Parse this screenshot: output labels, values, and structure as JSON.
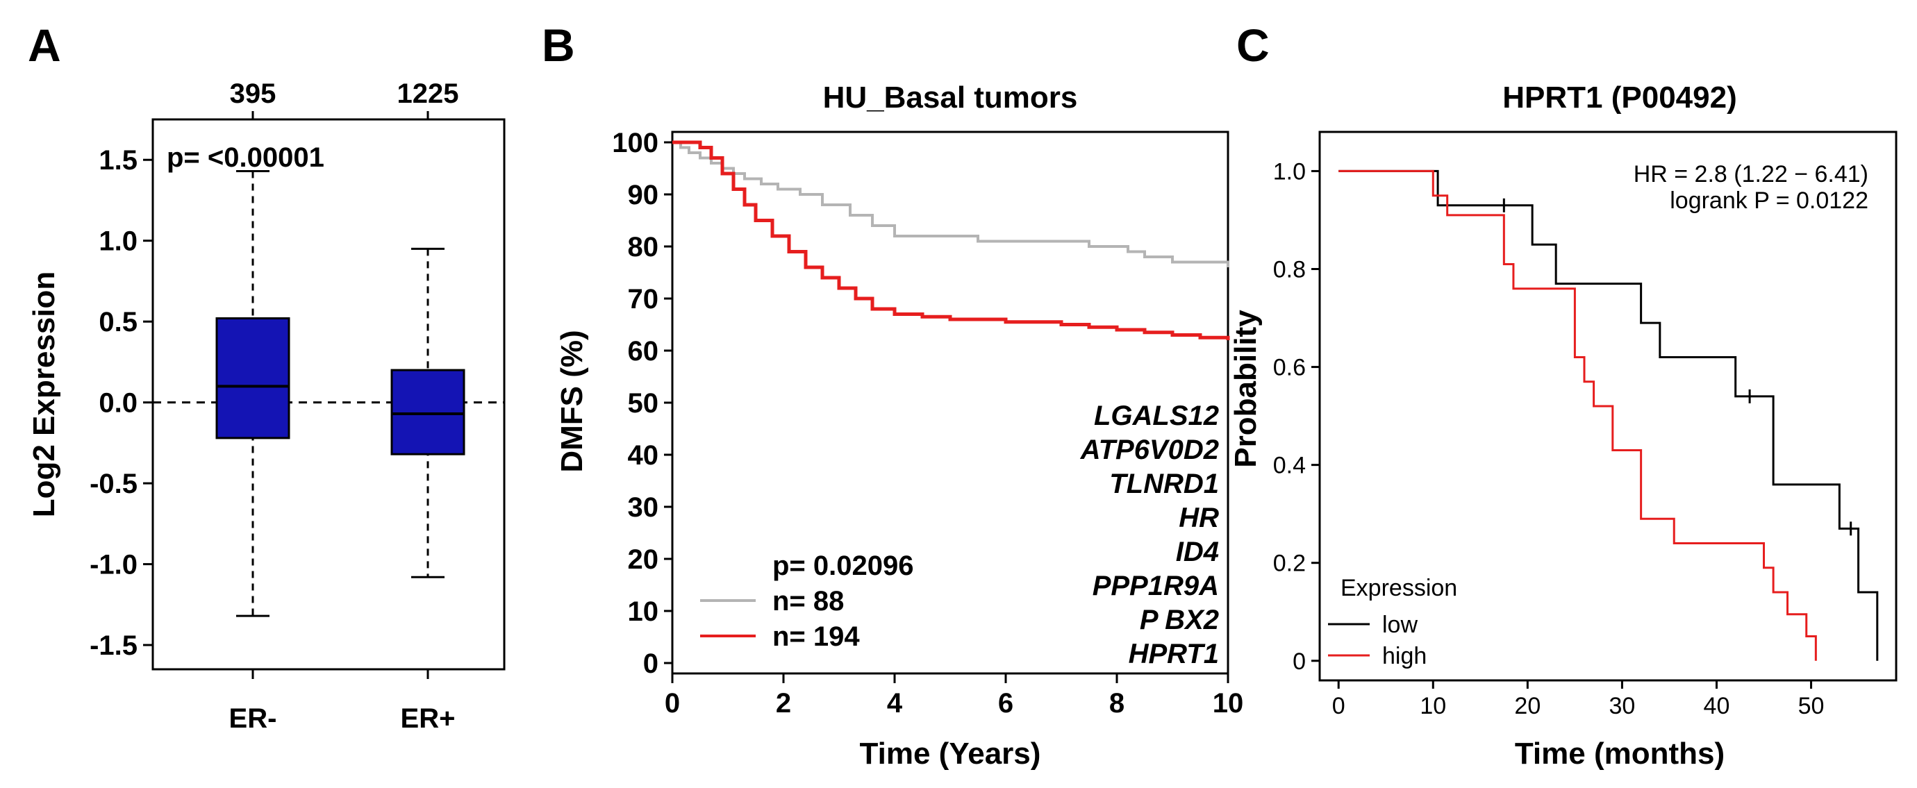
{
  "chart_data": [
    {
      "type": "box",
      "panel": "A",
      "title": "",
      "ylabel": "Log2 Expression",
      "xlabel": "",
      "ylim": [
        -1.65,
        1.75
      ],
      "yticks": [
        "1.5",
        "1.0",
        "0.5",
        "0.0",
        "-0.5",
        "-1.0",
        "-1.5"
      ],
      "ytick_values": [
        1.5,
        1.0,
        0.5,
        0.0,
        -0.5,
        -1.0,
        -1.5
      ],
      "reference_line": 0.0,
      "annotation": "p= <0.00001",
      "color": "#1414b4",
      "groups": [
        {
          "label": "ER-",
          "n": "395",
          "whisker_low": -1.32,
          "q1": -0.22,
          "median": 0.1,
          "q3": 0.52,
          "whisker_high": 1.43
        },
        {
          "label": "ER+",
          "n": "1225",
          "whisker_low": -1.08,
          "q1": -0.32,
          "median": -0.07,
          "q3": 0.2,
          "whisker_high": 0.95
        }
      ]
    },
    {
      "type": "line",
      "panel": "B",
      "title": "HU_Basal tumors",
      "xlabel": "Time (Years)",
      "ylabel": "DMFS (%)",
      "xlim": [
        0,
        10
      ],
      "ylim": [
        -2,
        102
      ],
      "xticks": [
        "0",
        "2",
        "4",
        "6",
        "8",
        "10"
      ],
      "xtick_values": [
        0,
        2,
        4,
        6,
        8,
        10
      ],
      "yticks": [
        "100",
        "90",
        "80",
        "70",
        "60",
        "50",
        "40",
        "30",
        "20",
        "10",
        "0"
      ],
      "ytick_values": [
        100,
        90,
        80,
        70,
        60,
        50,
        40,
        30,
        20,
        10,
        0
      ],
      "p_value": "p= 0.02096",
      "genes": [
        "LGALS12",
        "ATP6V0D2",
        "TLNRD1",
        "HR",
        "ID4",
        "PPP1R9A",
        "P BX2",
        "HPRT1"
      ],
      "series": [
        {
          "name": "n= 88",
          "color": "#b4b4b4",
          "x": [
            0,
            0.15,
            0.3,
            0.5,
            0.7,
            0.9,
            1.1,
            1.3,
            1.6,
            1.9,
            2.3,
            2.7,
            3.2,
            3.6,
            4.0,
            5.5,
            6.8,
            7.5,
            8.2,
            8.5,
            9.0,
            10.0
          ],
          "y": [
            100,
            99,
            98,
            97,
            96,
            95,
            94,
            93,
            92,
            91,
            90,
            88,
            86,
            84,
            82,
            81,
            81,
            80,
            79,
            78,
            77,
            76
          ]
        },
        {
          "name": "n= 194",
          "color": "#e61e1e",
          "x": [
            0,
            0.3,
            0.5,
            0.7,
            0.9,
            1.1,
            1.3,
            1.5,
            1.8,
            2.1,
            2.4,
            2.7,
            3.0,
            3.3,
            3.6,
            4.0,
            4.5,
            5.0,
            6.0,
            7.0,
            7.5,
            8.0,
            8.5,
            9.0,
            9.5,
            10.0
          ],
          "y": [
            100,
            100,
            99,
            97,
            94,
            91,
            88,
            85,
            82,
            79,
            76,
            74,
            72,
            70,
            68,
            67,
            66.5,
            66,
            65.5,
            65,
            64.5,
            64,
            63.5,
            63,
            62.5,
            62
          ]
        }
      ]
    },
    {
      "type": "line",
      "panel": "C",
      "title": "HPRT1 (P00492)",
      "xlabel": "Time (months)",
      "ylabel": "Probability",
      "xlim": [
        -2,
        59
      ],
      "ylim": [
        -0.04,
        1.08
      ],
      "xticks": [
        "0",
        "10",
        "20",
        "30",
        "40",
        "50"
      ],
      "xtick_values": [
        0,
        10,
        20,
        30,
        40,
        50
      ],
      "yticks": [
        "1.0",
        "0.8",
        "0.6",
        "0.4",
        "0.2",
        "0"
      ],
      "ytick_values": [
        1.0,
        0.8,
        0.6,
        0.4,
        0.2,
        0.0
      ],
      "hr_text": "HR = 2.8 (1.22 − 6.41)",
      "logrank_text": "logrank P = 0.0122",
      "legend_title": "Expression",
      "legend_position": "bottom-left",
      "series": [
        {
          "name": "low",
          "color": "#000000",
          "x": [
            0,
            10.5,
            10.5,
            20.5,
            20.5,
            23,
            23,
            29.5,
            29.5,
            32,
            32,
            34,
            34,
            42,
            42,
            46,
            46,
            53,
            53,
            55,
            55,
            57,
            57
          ],
          "y": [
            1.0,
            1.0,
            0.93,
            0.93,
            0.85,
            0.85,
            0.77,
            0.77,
            0.77,
            0.77,
            0.69,
            0.69,
            0.62,
            0.62,
            0.54,
            0.54,
            0.36,
            0.36,
            0.27,
            0.27,
            0.14,
            0.14,
            0.0
          ],
          "censor_x": [
            17.5,
            43.5,
            54.2
          ],
          "censor_y": [
            0.93,
            0.54,
            0.27
          ]
        },
        {
          "name": "high",
          "color": "#e61e1e",
          "x": [
            0,
            10,
            10,
            11.5,
            11.5,
            17.5,
            17.5,
            18.5,
            18.5,
            25,
            25,
            26,
            26,
            27,
            27,
            29,
            29,
            32,
            32,
            35.5,
            35.5,
            45,
            45,
            46,
            46,
            47.5,
            47.5,
            49.5,
            49.5,
            50.5,
            50.5
          ],
          "y": [
            1.0,
            1.0,
            0.95,
            0.95,
            0.91,
            0.91,
            0.81,
            0.81,
            0.76,
            0.76,
            0.62,
            0.62,
            0.57,
            0.57,
            0.52,
            0.52,
            0.43,
            0.43,
            0.29,
            0.29,
            0.24,
            0.24,
            0.19,
            0.19,
            0.14,
            0.14,
            0.095,
            0.095,
            0.05,
            0.05,
            0.0
          ]
        }
      ]
    }
  ],
  "panels": {
    "A": {
      "letter": "A"
    },
    "B": {
      "letter": "B"
    },
    "C": {
      "letter": "C"
    }
  }
}
